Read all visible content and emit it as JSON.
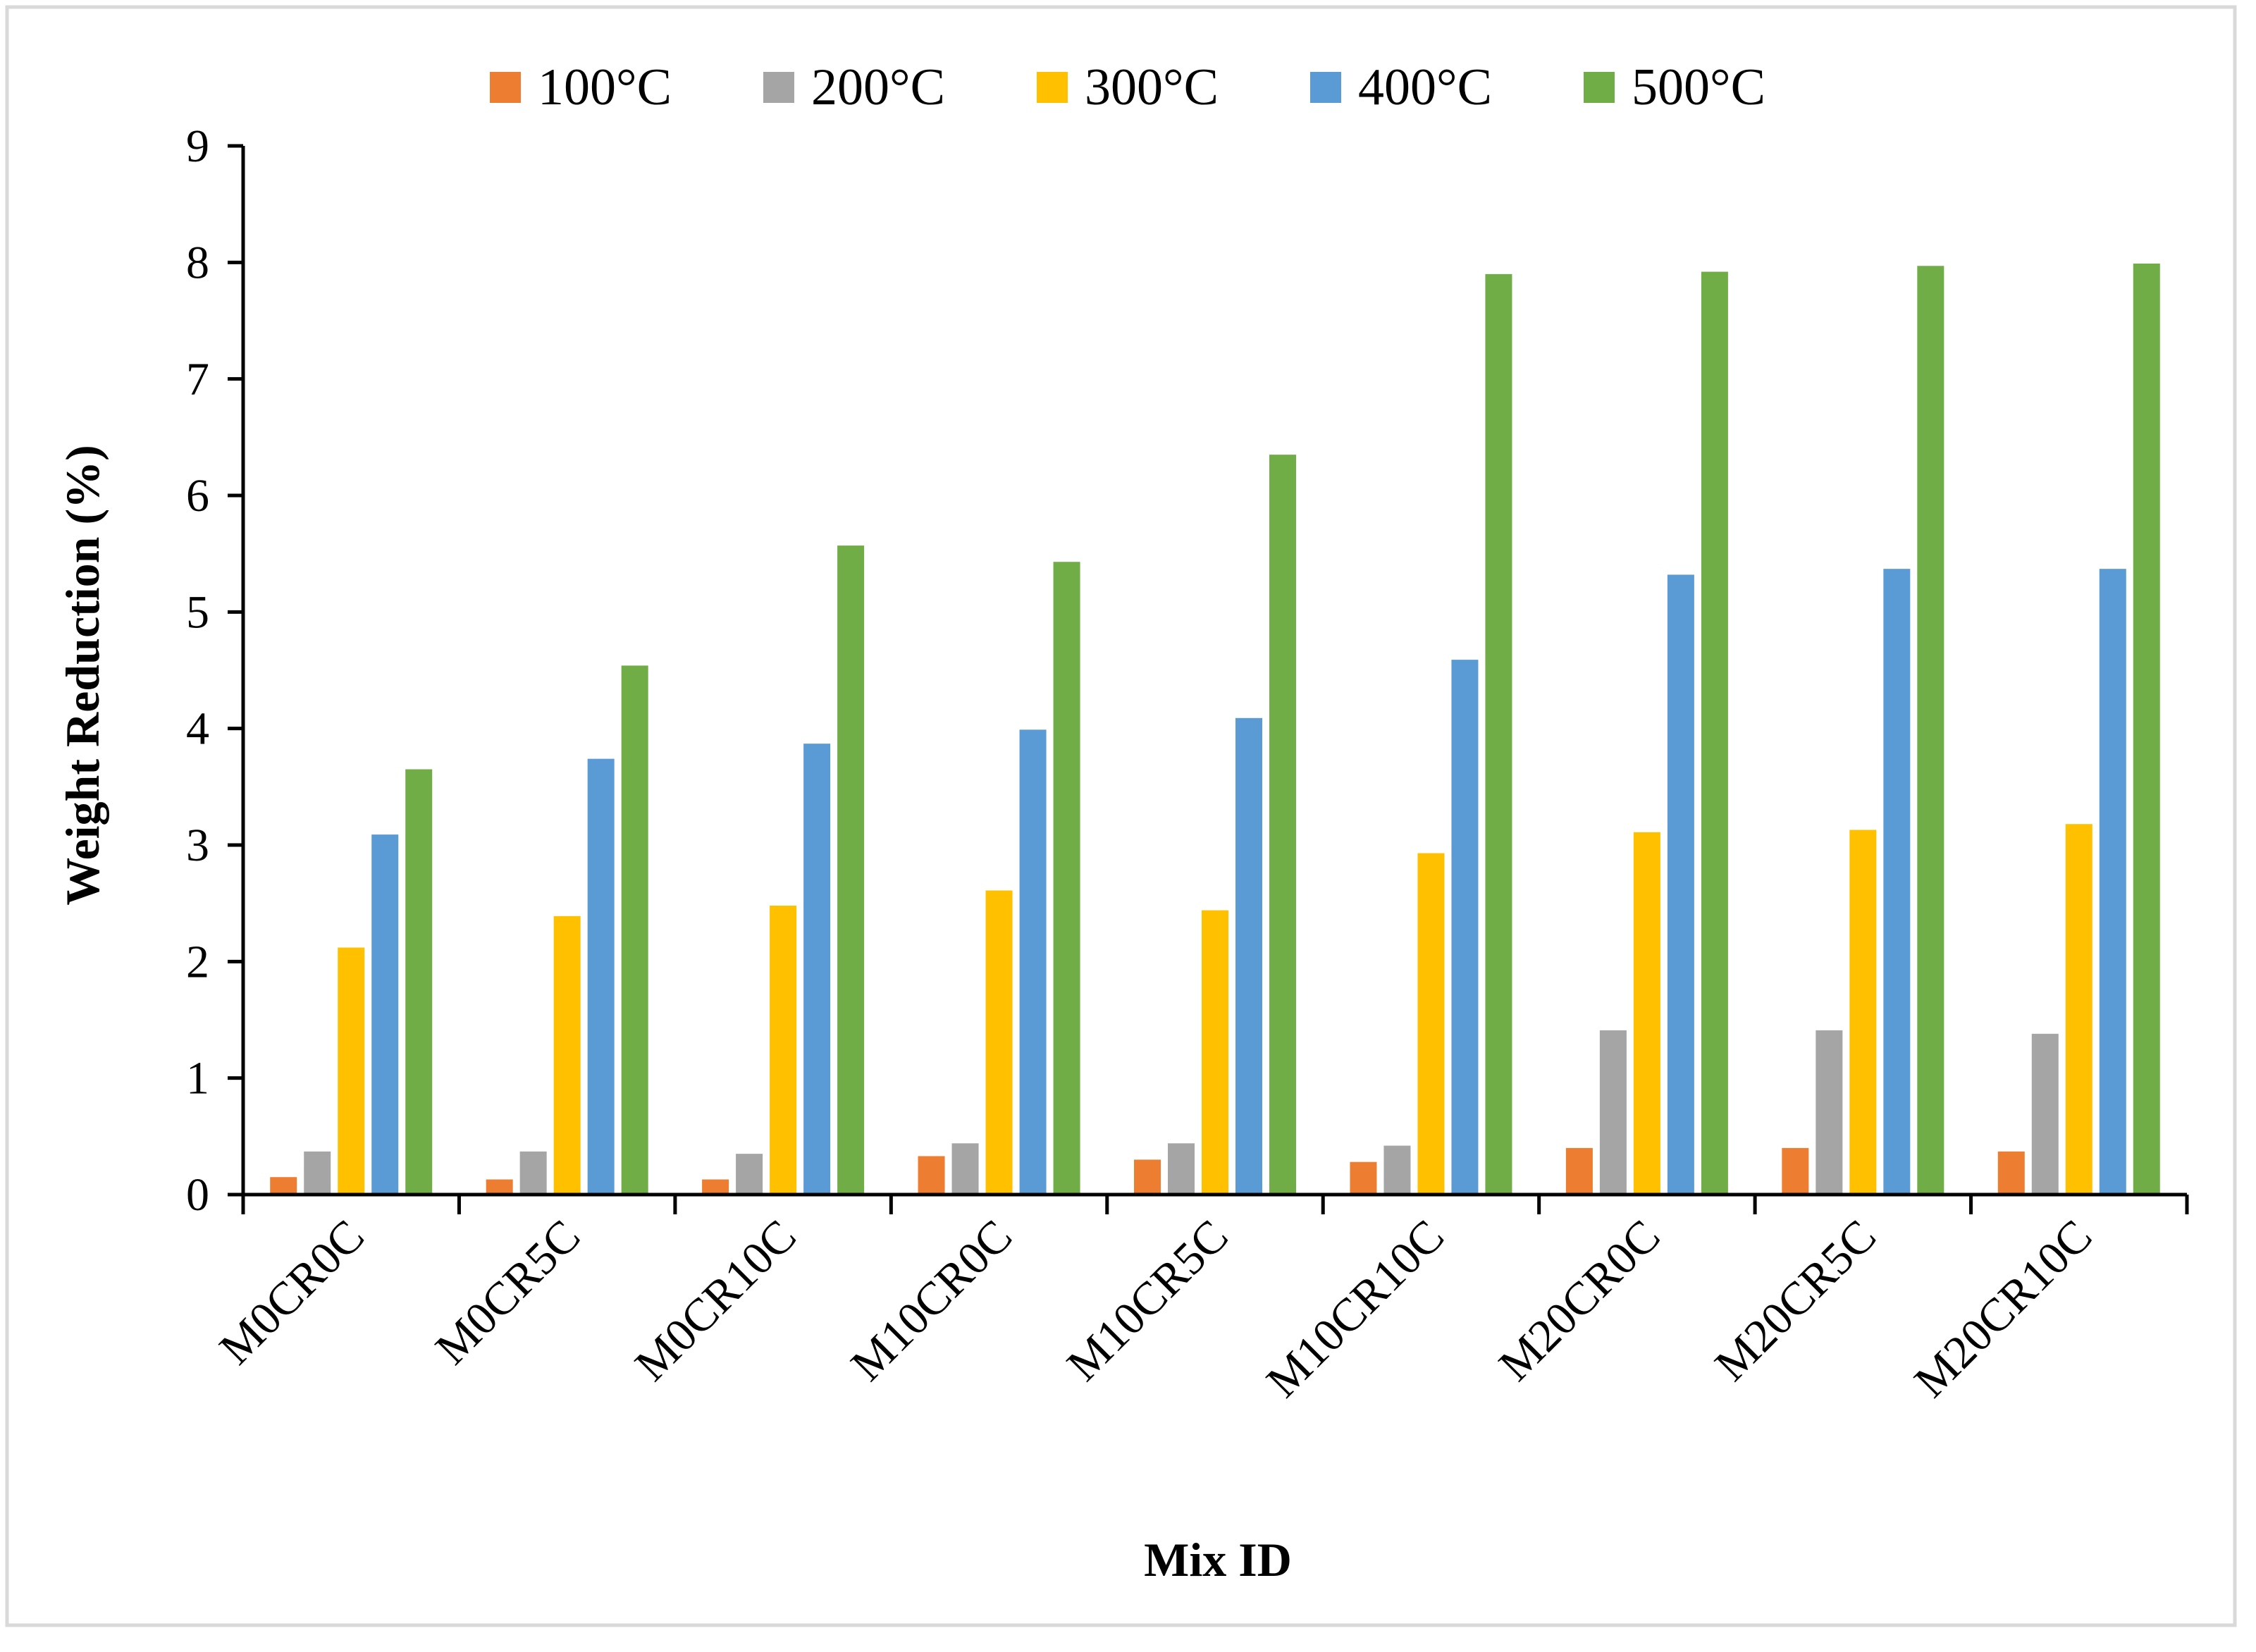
{
  "chart_data": {
    "type": "bar",
    "title": "",
    "xlabel": "Mix ID",
    "ylabel": "Weight Reduction (%)",
    "ylim": [
      0,
      9
    ],
    "yticks": [
      0,
      1,
      2,
      3,
      4,
      5,
      6,
      7,
      8,
      9
    ],
    "grid": false,
    "legend_position": "top",
    "categories": [
      "M0CR0C",
      "M0CR5C",
      "M0CR10C",
      "M10CR0C",
      "M10CR5C",
      "M10CR10C",
      "M20CR0C",
      "M20CR5C",
      "M20CR10C"
    ],
    "series": [
      {
        "name": "100°C",
        "color": "#ED7D31",
        "values": [
          0.15,
          0.13,
          0.13,
          0.33,
          0.3,
          0.28,
          0.4,
          0.4,
          0.37
        ]
      },
      {
        "name": "200°C",
        "color": "#A5A5A5",
        "values": [
          0.37,
          0.37,
          0.35,
          0.44,
          0.44,
          0.42,
          1.41,
          1.41,
          1.38
        ]
      },
      {
        "name": "300°C",
        "color": "#FFC000",
        "values": [
          2.12,
          2.39,
          2.48,
          2.61,
          2.44,
          2.93,
          3.11,
          3.13,
          3.18
        ]
      },
      {
        "name": "400°C",
        "color": "#5B9BD5",
        "values": [
          3.09,
          3.74,
          3.87,
          3.99,
          4.09,
          4.59,
          5.32,
          5.37,
          5.37
        ]
      },
      {
        "name": "500°C",
        "color": "#70AD47",
        "values": [
          3.65,
          4.54,
          5.57,
          5.43,
          6.35,
          7.9,
          7.92,
          7.97,
          7.99
        ]
      }
    ]
  }
}
